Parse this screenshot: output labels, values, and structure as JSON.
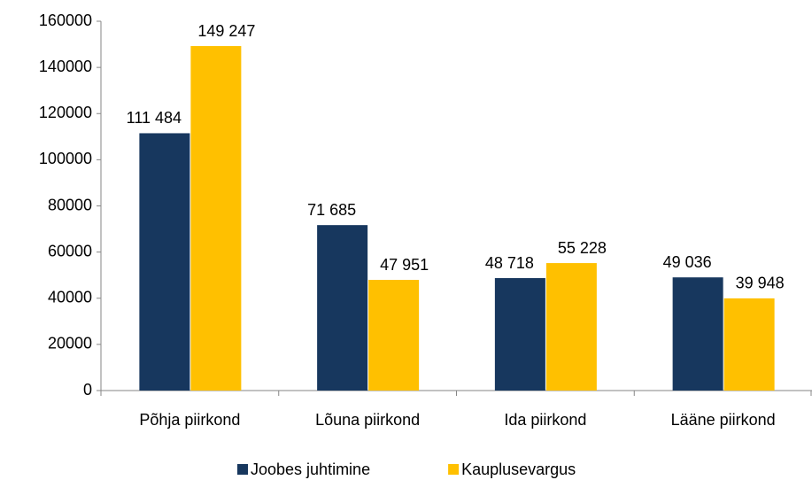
{
  "chart_data": {
    "type": "bar",
    "categories": [
      "Põhja piirkond",
      "Lõuna piirkond",
      "Ida piirkond",
      "Lääne piirkond"
    ],
    "series": [
      {
        "name": "Joobes juhtimine",
        "color": "#17375e",
        "values": [
          111484,
          71685,
          48718,
          49036
        ],
        "value_labels": [
          "111 484",
          "71 685",
          "48 718",
          "49 036"
        ]
      },
      {
        "name": "Kauplusevargus",
        "color": "#ffc000",
        "values": [
          149247,
          47951,
          55228,
          39948
        ],
        "value_labels": [
          "149 247",
          "47 951",
          "55 228",
          "39 948"
        ]
      }
    ],
    "ylim": [
      0,
      160000
    ],
    "yticks": [
      0,
      20000,
      40000,
      60000,
      80000,
      100000,
      120000,
      140000,
      160000
    ],
    "grid": false,
    "legend": "bottom"
  }
}
